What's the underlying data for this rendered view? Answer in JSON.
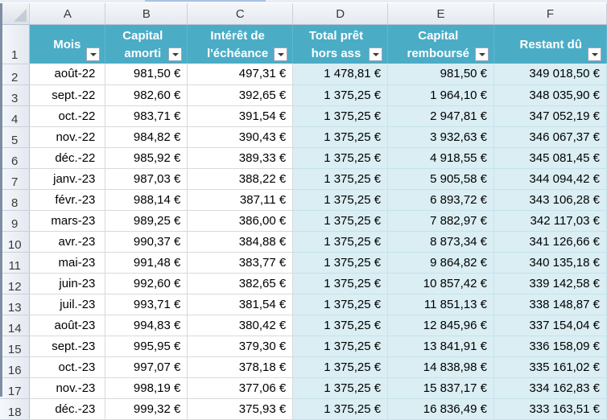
{
  "sheet": {
    "columns": [
      "A",
      "B",
      "C",
      "D",
      "E",
      "F"
    ],
    "header_row_number": "1",
    "headers": [
      {
        "lines": [
          "Mois"
        ]
      },
      {
        "lines": [
          "Capital",
          "amorti"
        ]
      },
      {
        "lines": [
          "Intérêt de",
          "l'échéance"
        ]
      },
      {
        "lines": [
          "Total prêt",
          "hors ass"
        ]
      },
      {
        "lines": [
          "Capital",
          "remboursé"
        ]
      },
      {
        "lines": [
          "Restant dû"
        ]
      }
    ],
    "rows": [
      {
        "num": "2",
        "cells": [
          "août-22",
          "981,50 €",
          "497,31 €",
          "1 478,81 €",
          "981,50 €",
          "349 018,50 €"
        ]
      },
      {
        "num": "3",
        "cells": [
          "sept.-22",
          "982,60 €",
          "392,65 €",
          "1 375,25 €",
          "1 964,10 €",
          "348 035,90 €"
        ]
      },
      {
        "num": "4",
        "cells": [
          "oct.-22",
          "983,71 €",
          "391,54 €",
          "1 375,25 €",
          "2 947,81 €",
          "347 052,19 €"
        ]
      },
      {
        "num": "5",
        "cells": [
          "nov.-22",
          "984,82 €",
          "390,43 €",
          "1 375,25 €",
          "3 932,63 €",
          "346 067,37 €"
        ]
      },
      {
        "num": "6",
        "cells": [
          "déc.-22",
          "985,92 €",
          "389,33 €",
          "1 375,25 €",
          "4 918,55 €",
          "345 081,45 €"
        ]
      },
      {
        "num": "7",
        "cells": [
          "janv.-23",
          "987,03 €",
          "388,22 €",
          "1 375,25 €",
          "5 905,58 €",
          "344 094,42 €"
        ]
      },
      {
        "num": "8",
        "cells": [
          "févr.-23",
          "988,14 €",
          "387,11 €",
          "1 375,25 €",
          "6 893,72 €",
          "343 106,28 €"
        ]
      },
      {
        "num": "9",
        "cells": [
          "mars-23",
          "989,25 €",
          "386,00 €",
          "1 375,25 €",
          "7 882,97 €",
          "342 117,03 €"
        ]
      },
      {
        "num": "10",
        "cells": [
          "avr.-23",
          "990,37 €",
          "384,88 €",
          "1 375,25 €",
          "8 873,34 €",
          "341 126,66 €"
        ]
      },
      {
        "num": "11",
        "cells": [
          "mai-23",
          "991,48 €",
          "383,77 €",
          "1 375,25 €",
          "9 864,82 €",
          "340 135,18 €"
        ]
      },
      {
        "num": "12",
        "cells": [
          "juin-23",
          "992,60 €",
          "382,65 €",
          "1 375,25 €",
          "10 857,42 €",
          "339 142,58 €"
        ]
      },
      {
        "num": "13",
        "cells": [
          "juil.-23",
          "993,71 €",
          "381,54 €",
          "1 375,25 €",
          "11 851,13 €",
          "338 148,87 €"
        ]
      },
      {
        "num": "14",
        "cells": [
          "août-23",
          "994,83 €",
          "380,42 €",
          "1 375,25 €",
          "12 845,96 €",
          "337 154,04 €"
        ]
      },
      {
        "num": "15",
        "cells": [
          "sept.-23",
          "995,95 €",
          "379,30 €",
          "1 375,25 €",
          "13 841,91 €",
          "336 158,09 €"
        ]
      },
      {
        "num": "16",
        "cells": [
          "oct.-23",
          "997,07 €",
          "378,18 €",
          "1 375,25 €",
          "14 838,98 €",
          "335 161,02 €"
        ]
      },
      {
        "num": "17",
        "cells": [
          "nov.-23",
          "998,19 €",
          "377,06 €",
          "1 375,25 €",
          "15 837,17 €",
          "334 162,83 €"
        ]
      },
      {
        "num": "18",
        "cells": [
          "déc.-23",
          "999,32 €",
          "375,93 €",
          "1 375,25 €",
          "16 836,49 €",
          "333 163,51 €"
        ]
      }
    ]
  },
  "colors": {
    "header_fill": "#4bacc6",
    "shaded_fill": "#daeef3",
    "grid_line": "#d9d9d9"
  },
  "icons": {
    "select_all": "select-all-triangle-icon",
    "filter": "filter-dropdown-icon"
  }
}
